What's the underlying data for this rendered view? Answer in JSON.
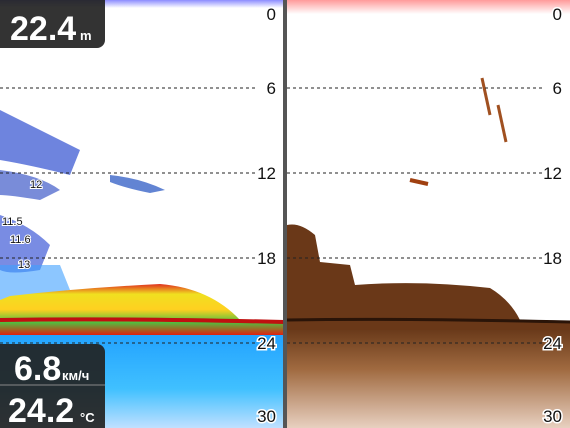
{
  "depth": {
    "value": 22.4,
    "unit": "m"
  },
  "speed": {
    "value": 6.8,
    "unit": "км/ч"
  },
  "water_temp": {
    "value": 24.2,
    "unit": "°C"
  },
  "depth_scale": [
    0,
    6,
    12,
    18,
    24,
    30
  ],
  "fish_labels": [
    "12",
    "11.5",
    "11.6",
    "13"
  ]
}
